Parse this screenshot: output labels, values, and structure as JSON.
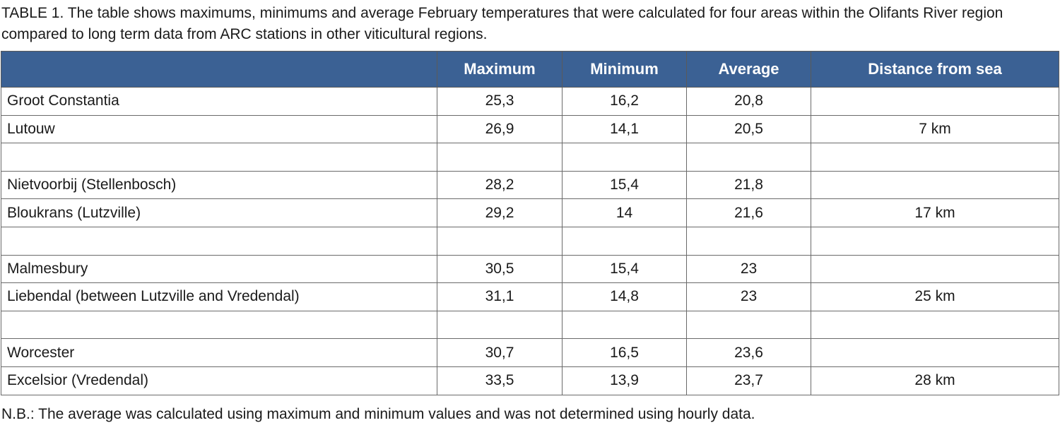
{
  "caption": "TABLE 1. The table shows maximums, minimums and average February temperatures that were calculated for four areas within the Olifants River region compared to long term data from ARC stations in other viticultural regions.",
  "headers": [
    "",
    "Maximum",
    "Minimum",
    "Average",
    "Distance from sea"
  ],
  "rows": [
    [
      "Groot Constantia",
      "25,3",
      "16,2",
      "20,8",
      ""
    ],
    [
      "Lutouw",
      "26,9",
      "14,1",
      "20,5",
      "7 km"
    ],
    [
      "",
      "",
      "",
      "",
      ""
    ],
    [
      "Nietvoorbij (Stellenbosch)",
      "28,2",
      "15,4",
      "21,8",
      ""
    ],
    [
      "Bloukrans (Lutzville)",
      "29,2",
      "14",
      "21,6",
      "17 km"
    ],
    [
      "",
      "",
      "",
      "",
      ""
    ],
    [
      "Malmesbury",
      "30,5",
      "15,4",
      "23",
      ""
    ],
    [
      "Liebendal (between Lutzville and Vredendal)",
      "31,1",
      "14,8",
      "23",
      "25 km"
    ],
    [
      "",
      "",
      "",
      "",
      ""
    ],
    [
      "Worcester",
      "30,7",
      "16,5",
      "23,6",
      ""
    ],
    [
      "Excelsior (Vredendal)",
      "33,5",
      "13,9",
      "23,7",
      "28 km"
    ]
  ],
  "note": "N.B.: The average was calculated using maximum and minimum values and was not determined using hourly data.",
  "colors": {
    "header_bg": "#3b6194",
    "header_text": "#ffffff",
    "border": "#6a6a6a"
  }
}
